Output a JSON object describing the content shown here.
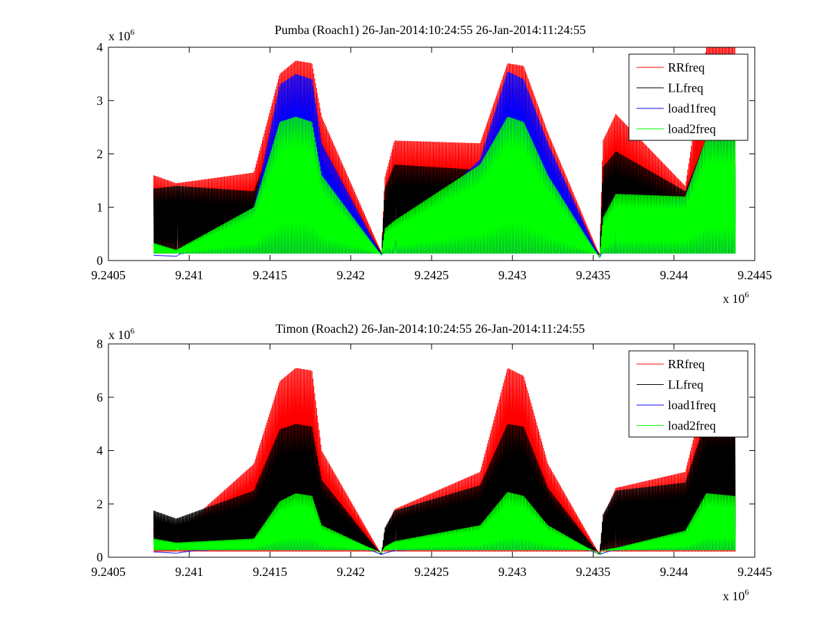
{
  "chart_data": [
    {
      "type": "line",
      "title": "Pumba (Roach1) 26-Jan-2014:10:24:55 26-Jan-2014:11:24:55",
      "xlabel": "",
      "ylabel": "",
      "x_exponent_label": "x 10",
      "x_exponent_power": "6",
      "y_exponent_label": "x 10",
      "y_exponent_power": "6",
      "xlim": [
        9.2405,
        9.2445
      ],
      "ylim": [
        0,
        4
      ],
      "x_ticks": [
        "9.2405",
        "9.241",
        "9.2415",
        "9.242",
        "9.2425",
        "9.243",
        "9.2435",
        "9.244",
        "9.2445"
      ],
      "y_ticks": [
        "0",
        "1",
        "2",
        "3",
        "4"
      ],
      "legend_position": "top-right",
      "series": [
        {
          "name": "RRfreq",
          "color": "#ff0000",
          "baseline": 0.05,
          "x": [
            9.24078,
            9.24092,
            9.2414,
            9.24156,
            9.24166,
            9.24176,
            9.24182,
            9.24219,
            9.24221,
            9.24227,
            9.2428,
            9.24297,
            9.24307,
            9.24322,
            9.24354,
            9.24356,
            9.24364,
            9.24407,
            9.2442,
            9.24437
          ],
          "y": [
            1.6,
            1.45,
            1.65,
            3.5,
            3.75,
            3.7,
            2.7,
            0.15,
            1.55,
            2.25,
            2.2,
            3.7,
            3.65,
            2.4,
            0.1,
            2.25,
            2.75,
            1.4,
            4.0,
            4.0
          ]
        },
        {
          "name": "LLfreq",
          "color": "#000000",
          "baseline": 0.05,
          "x": [
            9.24078,
            9.24092,
            9.2414,
            9.24156,
            9.24166,
            9.24176,
            9.24182,
            9.24219,
            9.24221,
            9.24227,
            9.2428,
            9.24297,
            9.24307,
            9.24322,
            9.24354,
            9.24356,
            9.24364,
            9.24407,
            9.2442,
            9.24437
          ],
          "y": [
            1.35,
            1.4,
            1.3,
            2.6,
            2.7,
            2.6,
            1.9,
            0.15,
            1.35,
            1.8,
            1.7,
            2.7,
            2.6,
            1.7,
            0.1,
            1.75,
            2.05,
            1.3,
            2.3,
            2.3
          ]
        },
        {
          "name": "load1freq",
          "color": "#0000ff",
          "baseline": 0.05,
          "x": [
            9.24078,
            9.24092,
            9.2414,
            9.24156,
            9.24166,
            9.24176,
            9.24182,
            9.24219,
            9.24221,
            9.24227,
            9.2428,
            9.24297,
            9.24307,
            9.24322,
            9.24354,
            9.24356,
            9.24364,
            9.24407,
            9.2442,
            9.24437
          ],
          "y": [
            0.1,
            0.08,
            1.0,
            3.3,
            3.5,
            3.4,
            2.2,
            0.1,
            0.2,
            0.35,
            1.9,
            3.55,
            3.4,
            2.2,
            0.05,
            0.2,
            0.85,
            1.2,
            2.3,
            2.3
          ]
        },
        {
          "name": "load2freq",
          "color": "#00ff00",
          "baseline": 0.05,
          "x": [
            9.24078,
            9.24092,
            9.2414,
            9.24156,
            9.24166,
            9.24176,
            9.24182,
            9.24219,
            9.24221,
            9.24227,
            9.2428,
            9.24297,
            9.24307,
            9.24322,
            9.24354,
            9.24356,
            9.24364,
            9.24407,
            9.2442,
            9.24437
          ],
          "y": [
            0.33,
            0.2,
            1.0,
            2.6,
            2.7,
            2.6,
            1.6,
            0.1,
            0.6,
            0.75,
            1.8,
            2.7,
            2.6,
            1.6,
            0.05,
            0.8,
            1.25,
            1.2,
            2.3,
            2.3
          ]
        }
      ]
    },
    {
      "type": "line",
      "title": "Timon (Roach2) 26-Jan-2014:10:24:55 26-Jan-2014:11:24:55",
      "xlabel": "",
      "ylabel": "",
      "x_exponent_label": "x 10",
      "x_exponent_power": "6",
      "y_exponent_label": "x 10",
      "y_exponent_power": "6",
      "xlim": [
        9.2405,
        9.2445
      ],
      "ylim": [
        0,
        8
      ],
      "x_ticks": [
        "9.2405",
        "9.241",
        "9.2415",
        "9.242",
        "9.2425",
        "9.243",
        "9.2435",
        "9.244",
        "9.2445"
      ],
      "y_ticks": [
        "0",
        "2",
        "4",
        "6",
        "8"
      ],
      "legend_position": "top-right",
      "series": [
        {
          "name": "RRfreq",
          "color": "#ff0000",
          "baseline": 0.05,
          "x": [
            9.24078,
            9.24092,
            9.2414,
            9.24156,
            9.24166,
            9.24176,
            9.24182,
            9.24219,
            9.24221,
            9.24227,
            9.2428,
            9.24297,
            9.24307,
            9.24322,
            9.24354,
            9.24356,
            9.24364,
            9.24407,
            9.2442,
            9.24437
          ],
          "y": [
            1.1,
            0.9,
            3.5,
            6.6,
            7.1,
            7.0,
            4.0,
            0.1,
            1.0,
            1.8,
            3.2,
            7.1,
            6.8,
            3.5,
            0.1,
            1.5,
            2.6,
            3.2,
            6.4,
            5.2
          ]
        },
        {
          "name": "LLfreq",
          "color": "#000000",
          "baseline": 0.1,
          "x": [
            9.24078,
            9.24092,
            9.2414,
            9.24156,
            9.24166,
            9.24176,
            9.24182,
            9.24219,
            9.24221,
            9.24227,
            9.2428,
            9.24297,
            9.24307,
            9.24322,
            9.24354,
            9.24356,
            9.24364,
            9.24407,
            9.2442,
            9.24437
          ],
          "y": [
            1.75,
            1.45,
            2.5,
            4.8,
            5.0,
            4.9,
            2.9,
            0.1,
            1.1,
            1.75,
            2.7,
            5.0,
            4.9,
            2.6,
            0.1,
            1.6,
            2.5,
            2.8,
            5.2,
            5.2
          ]
        },
        {
          "name": "load1freq",
          "color": "#0000ff",
          "baseline": 0.1,
          "x": [
            9.24078,
            9.24092,
            9.2414,
            9.24156,
            9.24166,
            9.24176,
            9.24182,
            9.24219,
            9.24221,
            9.24227,
            9.2428,
            9.24297,
            9.24307,
            9.24322,
            9.24354,
            9.24356,
            9.24364,
            9.24407,
            9.2442,
            9.24437
          ],
          "y": [
            0.2,
            0.15,
            0.6,
            1.7,
            2.0,
            1.9,
            1.0,
            0.1,
            0.15,
            0.25,
            0.9,
            2.1,
            2.0,
            1.0,
            0.1,
            0.15,
            0.3,
            0.8,
            2.0,
            2.0
          ]
        },
        {
          "name": "load2freq",
          "color": "#00ff00",
          "baseline": 0.1,
          "x": [
            9.24078,
            9.24092,
            9.2414,
            9.24156,
            9.24166,
            9.24176,
            9.24182,
            9.24219,
            9.24221,
            9.24227,
            9.2428,
            9.24297,
            9.24307,
            9.24322,
            9.24354,
            9.24356,
            9.24364,
            9.24407,
            9.2442,
            9.24437
          ],
          "y": [
            0.7,
            0.55,
            0.7,
            2.1,
            2.4,
            2.3,
            1.2,
            0.15,
            0.4,
            0.6,
            1.2,
            2.45,
            2.3,
            1.2,
            0.1,
            0.25,
            0.35,
            1.0,
            2.4,
            2.3
          ]
        }
      ]
    }
  ]
}
